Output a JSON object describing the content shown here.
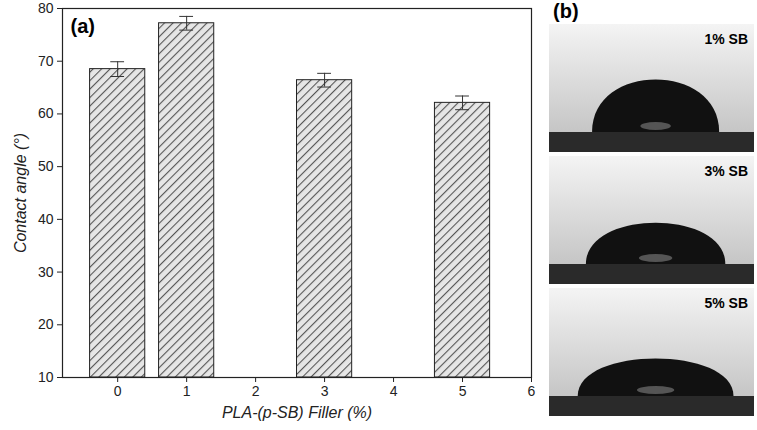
{
  "chart_data": {
    "type": "bar",
    "panel_label": "(a)",
    "x_label": "PLA-(p-SB) Filler (%)",
    "y_label": "Contact angle (°)",
    "x": [
      0,
      1,
      3,
      5
    ],
    "values": [
      68.5,
      77.2,
      66.4,
      62.1
    ],
    "errors": [
      1.4,
      1.3,
      1.3,
      1.3
    ],
    "color": "#555555",
    "xlim": [
      -0.8,
      6
    ],
    "xticks": [
      0,
      1,
      2,
      3,
      4,
      5,
      6
    ],
    "ylim": [
      10,
      80
    ],
    "yticks": [
      10,
      20,
      30,
      40,
      50,
      60,
      70,
      80
    ],
    "grid": false
  },
  "panel_b": {
    "label": "(b)",
    "images": [
      {
        "label": "1% SB"
      },
      {
        "label": "3% SB"
      },
      {
        "label": "5% SB"
      }
    ]
  }
}
